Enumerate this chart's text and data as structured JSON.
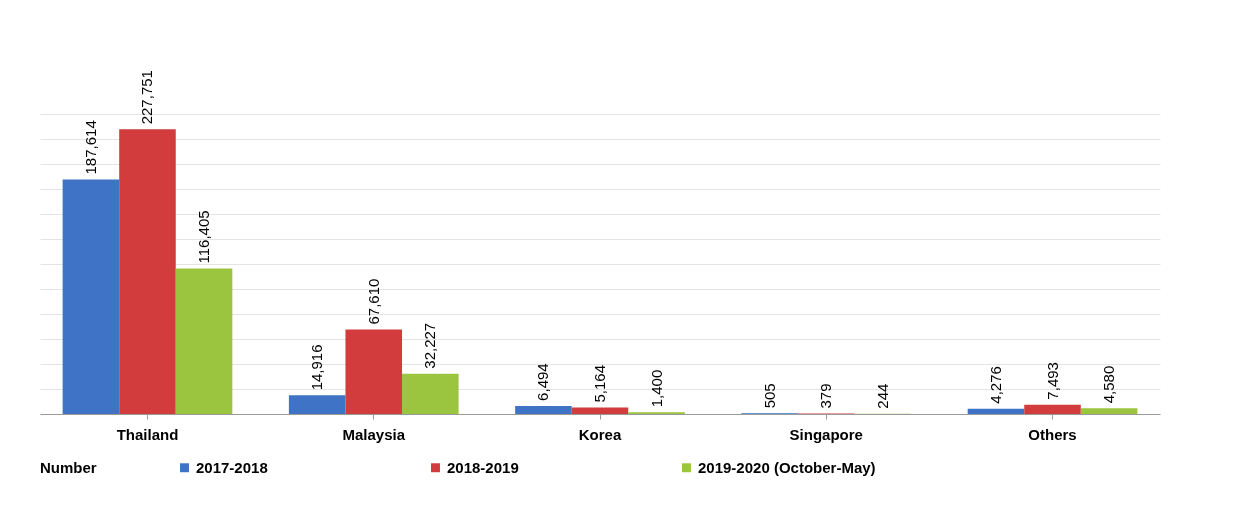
{
  "chart_data": {
    "type": "bar",
    "categories": [
      "Thailand",
      "Malaysia",
      "Korea",
      "Singapore",
      "Others"
    ],
    "series": [
      {
        "name": "2017-2018",
        "color": "#3f73c6",
        "values": [
          187614,
          14916,
          6494,
          505,
          4276
        ],
        "value_labels": [
          "187,614",
          "14,916",
          "6,494",
          "505",
          "4,276"
        ]
      },
      {
        "name": "2018-2019",
        "color": "#d23c3c",
        "values": [
          227751,
          67610,
          5164,
          379,
          7493
        ],
        "value_labels": [
          "227,751",
          "67,610",
          "5,164",
          "379",
          "7,493"
        ]
      },
      {
        "name": "2019-2020 (October-May)",
        "color": "#9bc53f",
        "values": [
          116405,
          32227,
          1400,
          244,
          4580
        ],
        "value_labels": [
          "116,405",
          "32,227",
          "1,400",
          "244",
          "4,580"
        ]
      }
    ],
    "legend_title": "Number",
    "legend": "bottom",
    "grid": "y",
    "tick_labels": "x"
  }
}
